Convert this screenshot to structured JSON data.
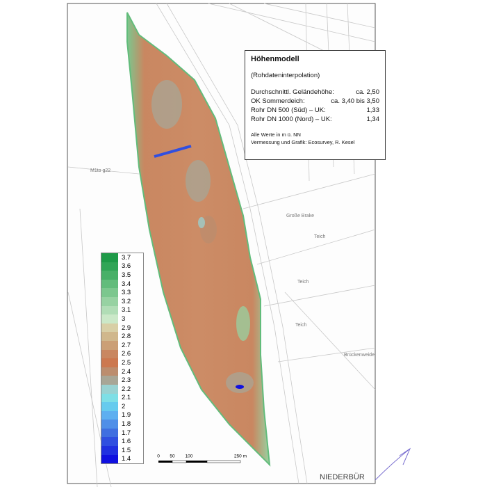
{
  "info": {
    "title": "Höhenmodell",
    "subtitle": "(Rohdateninterpolation)",
    "rows": [
      [
        "Durchschnittl. Geländehöhe:",
        "ca. 2,50"
      ],
      [
        "OK Sommerdeich:",
        "ca. 3,40 bis 3,50"
      ],
      [
        "Rohr DN 500 (Süd) – UK:",
        "1,33"
      ],
      [
        "Rohr DN 1000 (Nord) – UK:",
        "1,34"
      ]
    ],
    "notes": [
      "Alle Werte in  m ü. NN",
      "Vermessung und Grafik: Ecosurvey, R. Kesel"
    ]
  },
  "legend": [
    {
      "label": "3.7",
      "color": "#1e9a48"
    },
    {
      "label": "3.6",
      "color": "#31a557"
    },
    {
      "label": "3.5",
      "color": "#48b068"
    },
    {
      "label": "3.4",
      "color": "#62bc7b"
    },
    {
      "label": "3.3",
      "color": "#7cc78e"
    },
    {
      "label": "3.2",
      "color": "#97d2a2"
    },
    {
      "label": "3.1",
      "color": "#b1ddb6"
    },
    {
      "label": "3",
      "color": "#cbe8c8"
    },
    {
      "label": "2.9",
      "color": "#d8cfa6"
    },
    {
      "label": "2.8",
      "color": "#d0b78c"
    },
    {
      "label": "2.7",
      "color": "#cb9f76"
    },
    {
      "label": "2.6",
      "color": "#c98761"
    },
    {
      "label": "2.5",
      "color": "#cc7850"
    },
    {
      "label": "2.4",
      "color": "#bc8d6e"
    },
    {
      "label": "2.3",
      "color": "#a8a696"
    },
    {
      "label": "2.2",
      "color": "#99d2d2"
    },
    {
      "label": "2.1",
      "color": "#7edfe6"
    },
    {
      "label": "2",
      "color": "#66cbee"
    },
    {
      "label": "1.9",
      "color": "#5eaff0"
    },
    {
      "label": "1.8",
      "color": "#508fe8"
    },
    {
      "label": "1.7",
      "color": "#406fe0"
    },
    {
      "label": "1.6",
      "color": "#304fe0"
    },
    {
      "label": "1.5",
      "color": "#2030e0"
    },
    {
      "label": "1.4",
      "color": "#1010e0"
    }
  ],
  "scale_bar": [
    "0",
    "50",
    "100",
    "250 m"
  ],
  "map_labels": [
    "M1to g22",
    "Große Brake",
    "Teich",
    "Teich",
    "Teich",
    "Brückenweide",
    "NIEDERBÜR"
  ]
}
